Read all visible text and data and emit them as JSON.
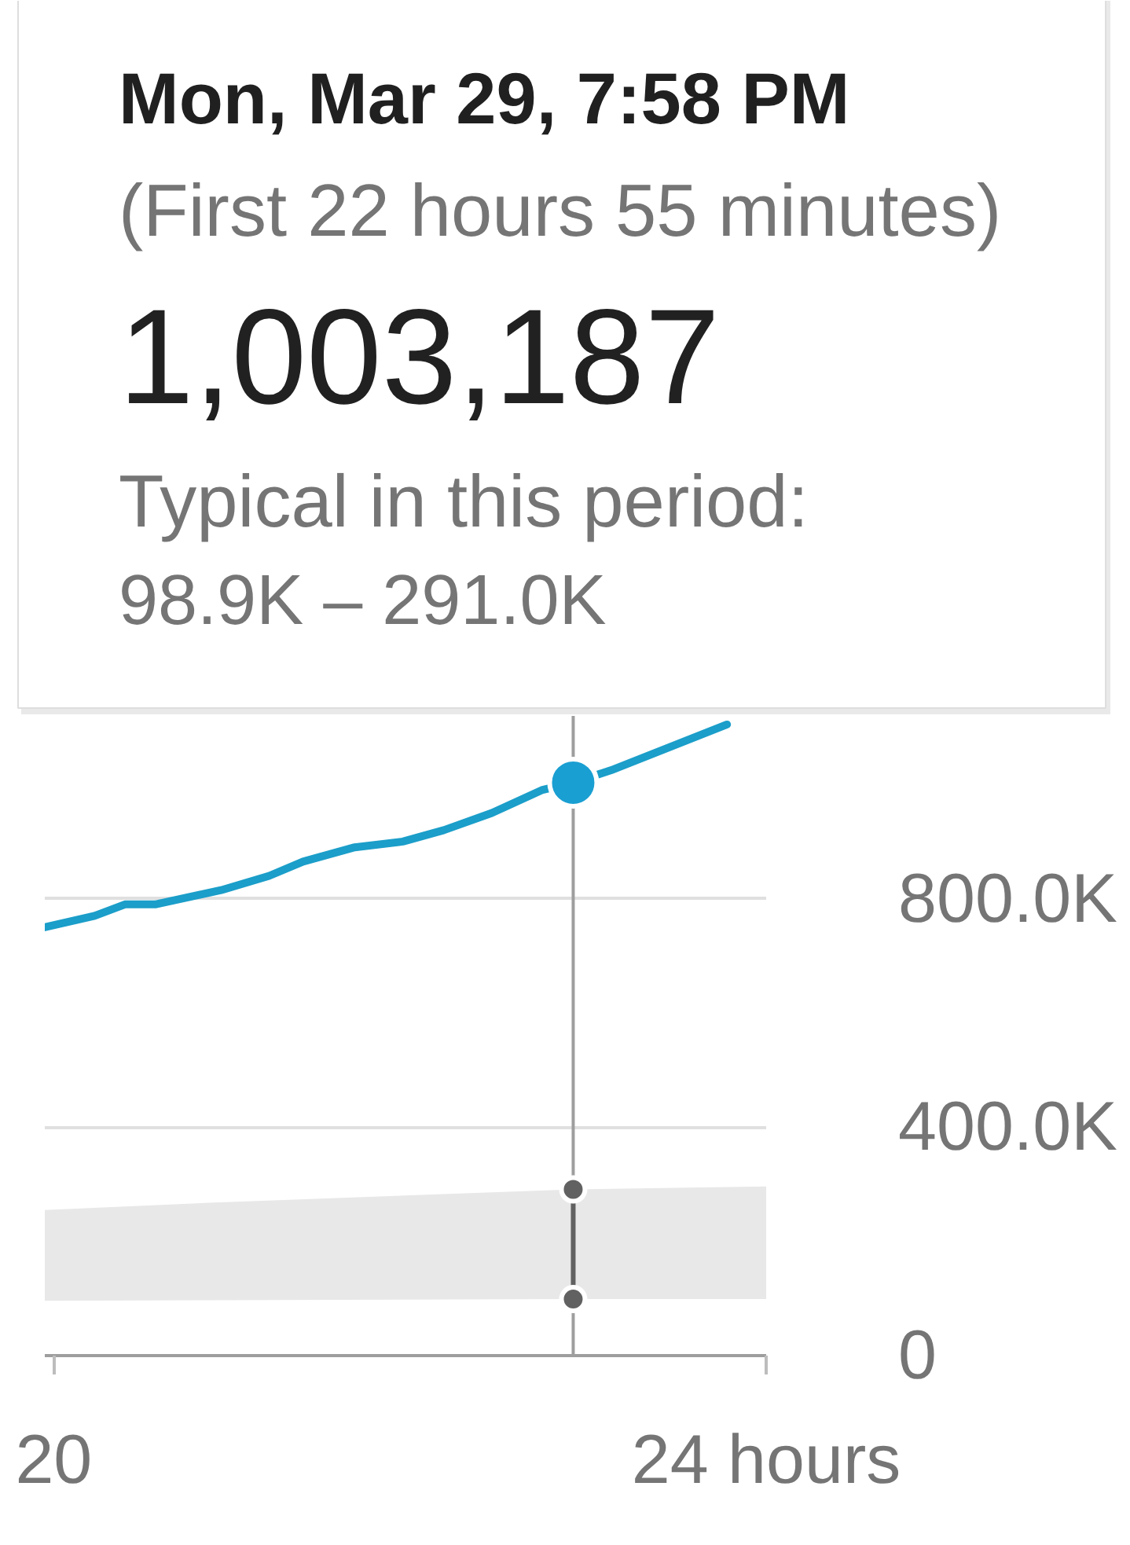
{
  "chart_data": {
    "type": "line",
    "annotations": [
      "Mon, Mar 29, 7:58 PM",
      "(First 22 hours 55 minutes)",
      "1,003,187",
      "Typical in this period:",
      "98.9K – 291.0K"
    ],
    "xlim": [
      19.95,
      24
    ],
    "xticks": [
      20,
      {
        "value": 24,
        "label": "24 hours"
      }
    ],
    "ylim": [
      0,
      1120000
    ],
    "yticks": [
      0,
      {
        "value": 400000,
        "label": "400.0K"
      },
      {
        "value": 800000,
        "label": "800.0K"
      }
    ],
    "grid": "y",
    "ref_lines": [
      {
        "axis": "x",
        "value": 22.9167,
        "color": "#9e9e9e"
      }
    ],
    "series": [
      {
        "color": "#e8e8e8",
        "x": [
          19.95,
          20.9,
          22.9167,
          24
        ],
        "values": [
          null,
          null,
          null,
          null
        ],
        "lower": [
          96000,
          97000,
          98900,
          99000
        ],
        "upper": [
          255000,
          268000,
          291000,
          296000
        ]
      },
      {
        "color": "#1b9ec9",
        "x": [
          19.95,
          20.23,
          20.4,
          20.57,
          20.94,
          21.21,
          21.4,
          21.69,
          21.96,
          22.19,
          22.46,
          22.74,
          22.9167,
          23.13,
          23.78
        ],
        "values": [
          750000,
          770000,
          790000,
          790000,
          815000,
          840000,
          865000,
          890000,
          900000,
          920000,
          950000,
          990000,
          1003187,
          1025000,
          1105000
        ]
      },
      {
        "type": "line",
        "color": "#616161",
        "marker": "circle",
        "x": [
          22.9167,
          22.9167
        ],
        "values": [
          98900,
          291000
        ]
      },
      {
        "type": "scatter",
        "color": "#1a9fd2",
        "marker": "circle",
        "x": [
          22.9167
        ],
        "values": [
          1003187
        ]
      }
    ]
  }
}
